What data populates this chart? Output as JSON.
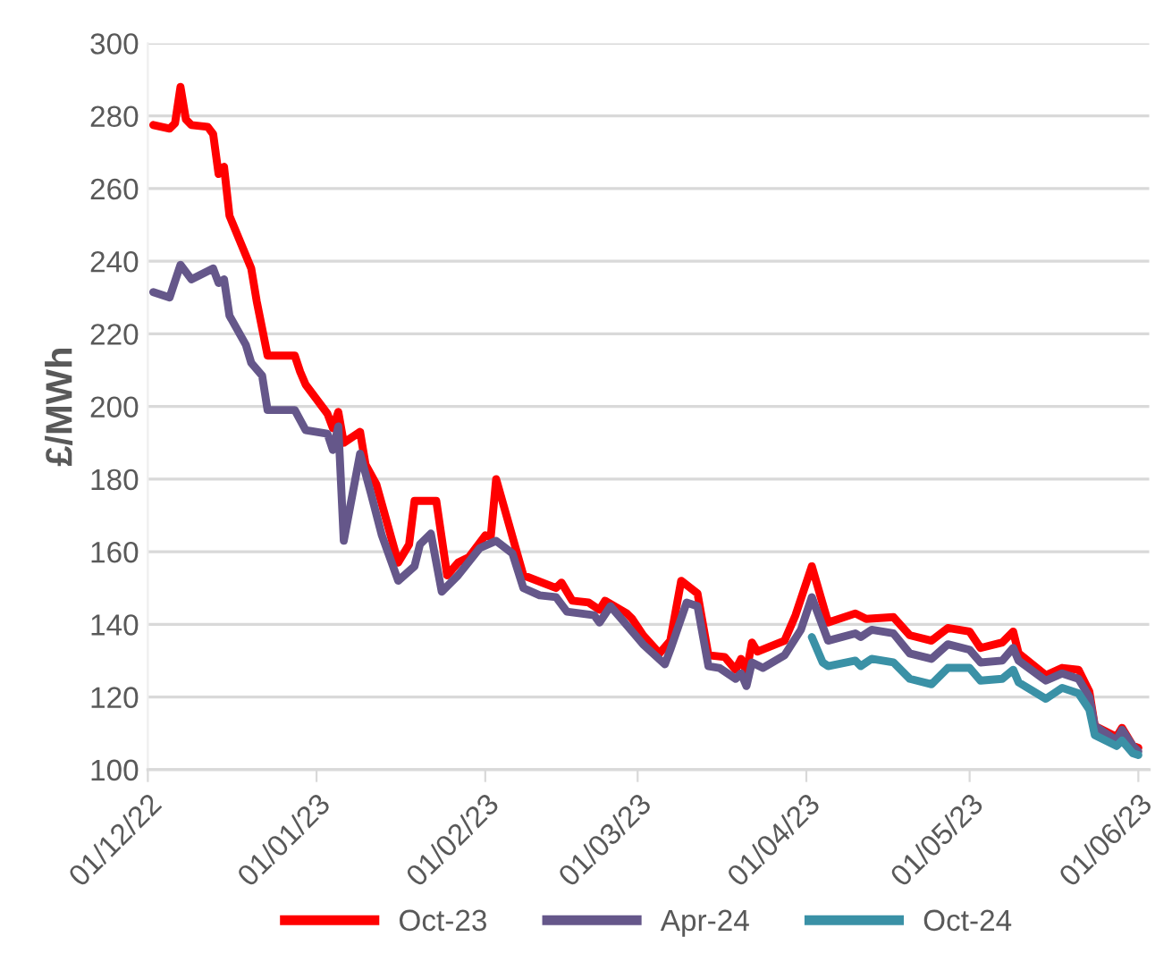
{
  "chart_data": {
    "type": "line",
    "ylabel": "£/MWh",
    "grid": "y",
    "legend": "bottom",
    "line_style": "solid",
    "marker": "none",
    "xlim": [
      "2022-12-01",
      "2023-06-03"
    ],
    "ylim": [
      100,
      300
    ],
    "yticks": [
      100,
      120,
      140,
      160,
      180,
      200,
      220,
      240,
      260,
      280,
      300
    ],
    "xticks": [
      {
        "value": "2022-12-01",
        "label": "01/12/22"
      },
      {
        "value": "2023-01-01",
        "label": "01/01/23"
      },
      {
        "value": "2023-02-01",
        "label": "01/02/23"
      },
      {
        "value": "2023-03-01",
        "label": "01/03/23"
      },
      {
        "value": "2023-04-01",
        "label": "01/04/23"
      },
      {
        "value": "2023-05-01",
        "label": "01/05/23"
      },
      {
        "value": "2023-06-01",
        "label": "01/06/23"
      }
    ],
    "series": [
      {
        "name": "Oct-23",
        "color": "#ff0000",
        "x": [
          "2022-12-02",
          "2022-12-05",
          "2022-12-06",
          "2022-12-07",
          "2022-12-08",
          "2022-12-09",
          "2022-12-12",
          "2022-12-13",
          "2022-12-14",
          "2022-12-15",
          "2022-12-16",
          "2022-12-20",
          "2022-12-21",
          "2022-12-23",
          "2022-12-28",
          "2022-12-29",
          "2022-12-30",
          "2023-01-03",
          "2023-01-04",
          "2023-01-05",
          "2023-01-06",
          "2023-01-09",
          "2023-01-10",
          "2023-01-12",
          "2023-01-16",
          "2023-01-18",
          "2023-01-19",
          "2023-01-23",
          "2023-01-25",
          "2023-01-27",
          "2023-01-29",
          "2023-02-01",
          "2023-02-02",
          "2023-02-03",
          "2023-02-08",
          "2023-02-14",
          "2023-02-15",
          "2023-02-17",
          "2023-02-20",
          "2023-02-22",
          "2023-02-23",
          "2023-02-27",
          "2023-02-28",
          "2023-03-02",
          "2023-03-05",
          "2023-03-07",
          "2023-03-09",
          "2023-03-12",
          "2023-03-14",
          "2023-03-17",
          "2023-03-19",
          "2023-03-20",
          "2023-03-21",
          "2023-03-22",
          "2023-03-23",
          "2023-03-28",
          "2023-03-30",
          "2023-04-02",
          "2023-04-05",
          "2023-04-10",
          "2023-04-12",
          "2023-04-17",
          "2023-04-20",
          "2023-04-24",
          "2023-04-27",
          "2023-05-01",
          "2023-05-03",
          "2023-05-07",
          "2023-05-09",
          "2023-05-10",
          "2023-05-15",
          "2023-05-18",
          "2023-05-21",
          "2023-05-23",
          "2023-05-24",
          "2023-05-28",
          "2023-05-29",
          "2023-05-31",
          "2023-06-01"
        ],
        "values": [
          277.5,
          276.5,
          278,
          288,
          279,
          277.5,
          277,
          275,
          264,
          266,
          252.5,
          238,
          229,
          214,
          214,
          209.5,
          206,
          198,
          194,
          198.5,
          190,
          193,
          184,
          178.5,
          157,
          162,
          174,
          174,
          153.5,
          157,
          158.5,
          164.5,
          164,
          180,
          153.5,
          150,
          151.5,
          146.5,
          146,
          144,
          146.5,
          143,
          141.5,
          137,
          132,
          135.5,
          152,
          148.5,
          131.5,
          131,
          127.5,
          130.5,
          127,
          135,
          132.5,
          135.5,
          142.5,
          156,
          140.5,
          143,
          141.5,
          142,
          137,
          135.5,
          139,
          138,
          133.5,
          135,
          138,
          132,
          126,
          128,
          127.5,
          121.5,
          112,
          109,
          111.5,
          106.5,
          106
        ]
      },
      {
        "name": "Apr-24",
        "color": "#65578a",
        "x": [
          "2022-12-02",
          "2022-12-05",
          "2022-12-07",
          "2022-12-09",
          "2022-12-13",
          "2022-12-14",
          "2022-12-15",
          "2022-12-16",
          "2022-12-19",
          "2022-12-20",
          "2022-12-22",
          "2022-12-23",
          "2022-12-28",
          "2022-12-30",
          "2023-01-03",
          "2023-01-04",
          "2023-01-05",
          "2023-01-06",
          "2023-01-09",
          "2023-01-11",
          "2023-01-13",
          "2023-01-16",
          "2023-01-19",
          "2023-01-20",
          "2023-01-22",
          "2023-01-24",
          "2023-01-27",
          "2023-01-31",
          "2023-02-03",
          "2023-02-06",
          "2023-02-08",
          "2023-02-11",
          "2023-02-14",
          "2023-02-16",
          "2023-02-21",
          "2023-02-22",
          "2023-02-24",
          "2023-02-26",
          "2023-03-02",
          "2023-03-06",
          "2023-03-07",
          "2023-03-10",
          "2023-03-12",
          "2023-03-14",
          "2023-03-16",
          "2023-03-19",
          "2023-03-20",
          "2023-03-21",
          "2023-03-22",
          "2023-03-24",
          "2023-03-28",
          "2023-03-31",
          "2023-04-02",
          "2023-04-05",
          "2023-04-10",
          "2023-04-11",
          "2023-04-13",
          "2023-04-17",
          "2023-04-20",
          "2023-04-24",
          "2023-04-27",
          "2023-05-01",
          "2023-05-03",
          "2023-05-07",
          "2023-05-09",
          "2023-05-10",
          "2023-05-15",
          "2023-05-18",
          "2023-05-21",
          "2023-05-23",
          "2023-05-24",
          "2023-05-28",
          "2023-05-29",
          "2023-05-31",
          "2023-06-01"
        ],
        "values": [
          231.5,
          230,
          239,
          235,
          238,
          234,
          235,
          225,
          217,
          212,
          208.5,
          199,
          199,
          193.5,
          192.5,
          188,
          194.5,
          163,
          187,
          176,
          164.5,
          152,
          156,
          162,
          165,
          149,
          153.5,
          161,
          163,
          159.5,
          150,
          148,
          147.5,
          143.5,
          142.5,
          140.5,
          145,
          141.5,
          134.5,
          129,
          133,
          146,
          145,
          128.5,
          128,
          125,
          126.5,
          123,
          129.5,
          128,
          131.5,
          138.5,
          147.5,
          135.5,
          137.5,
          136.5,
          138.5,
          137.5,
          132,
          130.5,
          134.5,
          133,
          129.5,
          130,
          133.5,
          130,
          124.5,
          126.5,
          125,
          120,
          112,
          108,
          111,
          106.5,
          105
        ]
      },
      {
        "name": "Oct-24",
        "color": "#3a91a6",
        "x": [
          "2023-04-02",
          "2023-04-04",
          "2023-04-05",
          "2023-04-10",
          "2023-04-11",
          "2023-04-13",
          "2023-04-17",
          "2023-04-20",
          "2023-04-24",
          "2023-04-27",
          "2023-05-01",
          "2023-05-03",
          "2023-05-07",
          "2023-05-09",
          "2023-05-10",
          "2023-05-15",
          "2023-05-18",
          "2023-05-21",
          "2023-05-23",
          "2023-05-24",
          "2023-05-28",
          "2023-05-29",
          "2023-05-31",
          "2023-06-01"
        ],
        "values": [
          136.5,
          129.5,
          128.5,
          130,
          128.5,
          130.5,
          129.5,
          125,
          123.5,
          128,
          128,
          124.5,
          125,
          127.5,
          124,
          119.5,
          122.5,
          121,
          116.5,
          109.5,
          106.5,
          108,
          104.5,
          104
        ]
      }
    ]
  }
}
